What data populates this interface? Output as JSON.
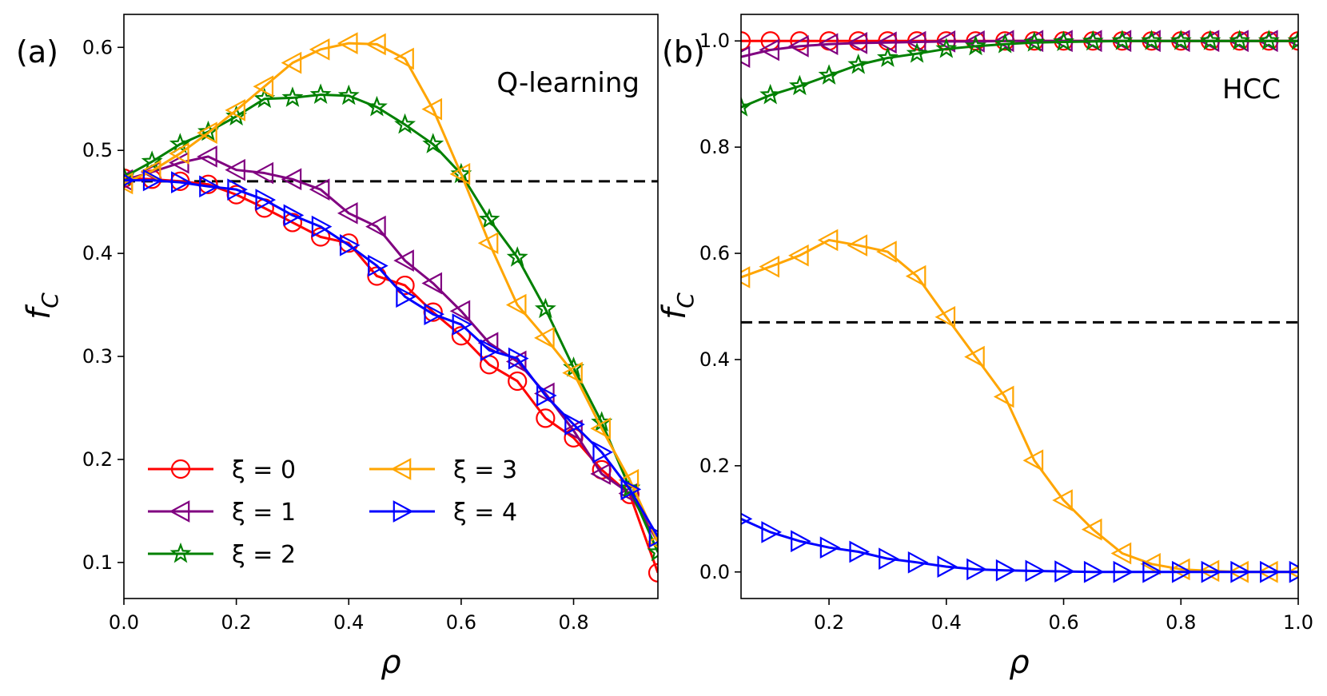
{
  "colors": {
    "xi0": "#ff0000",
    "xi1": "#800080",
    "xi2": "#008000",
    "xi3": "#ffa500",
    "xi4": "#0000ff",
    "reference": "#000000"
  },
  "chart_data": [
    {
      "type": "line",
      "panel_tag": "(a)",
      "title": "Q-learning",
      "xlabel": "ρ",
      "ylabel_base": "f",
      "ylabel_sub": "C",
      "xlim": [
        0.0,
        0.95
      ],
      "ylim": [
        0.065,
        0.632
      ],
      "xticks": [
        "0.0",
        "0.2",
        "0.4",
        "0.6",
        "0.8"
      ],
      "yticks": [
        "0.1",
        "0.2",
        "0.3",
        "0.4",
        "0.5",
        "0.6"
      ],
      "reference_line": 0.47,
      "legend": {
        "position": "lower-left",
        "entries": [
          "ξ = 0",
          "ξ = 1",
          "ξ = 2",
          "ξ = 3",
          "ξ = 4"
        ]
      },
      "series": [
        {
          "name": "ξ = 0",
          "marker": "circle",
          "color_key": "xi0",
          "x": [
            0.0,
            0.05,
            0.1,
            0.15,
            0.2,
            0.25,
            0.3,
            0.35,
            0.4,
            0.45,
            0.5,
            0.55,
            0.6,
            0.65,
            0.7,
            0.75,
            0.8,
            0.85,
            0.9,
            0.95
          ],
          "y": [
            0.473,
            0.472,
            0.47,
            0.467,
            0.457,
            0.444,
            0.43,
            0.416,
            0.41,
            0.378,
            0.369,
            0.343,
            0.32,
            0.292,
            0.276,
            0.24,
            0.221,
            0.19,
            0.166,
            0.09
          ]
        },
        {
          "name": "ξ = 1",
          "marker": "triangle-left",
          "color_key": "xi1",
          "x": [
            0.0,
            0.05,
            0.1,
            0.15,
            0.2,
            0.25,
            0.3,
            0.35,
            0.4,
            0.45,
            0.5,
            0.55,
            0.6,
            0.65,
            0.7,
            0.75,
            0.8,
            0.85,
            0.9,
            0.95
          ],
          "y": [
            0.471,
            0.479,
            0.488,
            0.494,
            0.481,
            0.478,
            0.472,
            0.462,
            0.439,
            0.426,
            0.393,
            0.371,
            0.344,
            0.313,
            0.295,
            0.264,
            0.228,
            0.186,
            0.167,
            0.12
          ]
        },
        {
          "name": "ξ = 2",
          "marker": "star",
          "color_key": "xi2",
          "x": [
            0.0,
            0.05,
            0.1,
            0.15,
            0.2,
            0.25,
            0.3,
            0.35,
            0.4,
            0.45,
            0.5,
            0.55,
            0.6,
            0.65,
            0.7,
            0.75,
            0.8,
            0.85,
            0.9,
            0.95
          ],
          "y": [
            0.474,
            0.489,
            0.506,
            0.518,
            0.533,
            0.55,
            0.551,
            0.554,
            0.553,
            0.542,
            0.525,
            0.506,
            0.477,
            0.433,
            0.396,
            0.346,
            0.289,
            0.236,
            0.172,
            0.11
          ]
        },
        {
          "name": "ξ = 3",
          "marker": "triangle-left",
          "color_key": "xi3",
          "x": [
            0.0,
            0.05,
            0.1,
            0.15,
            0.2,
            0.25,
            0.3,
            0.35,
            0.4,
            0.45,
            0.5,
            0.55,
            0.6,
            0.65,
            0.7,
            0.75,
            0.8,
            0.85,
            0.9,
            0.95
          ],
          "y": [
            0.468,
            0.48,
            0.497,
            0.517,
            0.539,
            0.562,
            0.585,
            0.598,
            0.604,
            0.603,
            0.589,
            0.54,
            0.477,
            0.41,
            0.35,
            0.318,
            0.284,
            0.23,
            0.18,
            0.12
          ]
        },
        {
          "name": "ξ = 4",
          "marker": "triangle-right",
          "color_key": "xi4",
          "x": [
            0.0,
            0.05,
            0.1,
            0.15,
            0.2,
            0.25,
            0.3,
            0.35,
            0.4,
            0.45,
            0.5,
            0.55,
            0.6,
            0.65,
            0.7,
            0.75,
            0.8,
            0.85,
            0.9,
            0.95
          ],
          "y": [
            0.471,
            0.471,
            0.469,
            0.465,
            0.462,
            0.452,
            0.437,
            0.426,
            0.408,
            0.388,
            0.358,
            0.341,
            0.331,
            0.306,
            0.298,
            0.262,
            0.234,
            0.207,
            0.171,
            0.125
          ]
        }
      ]
    },
    {
      "type": "line",
      "panel_tag": "(b)",
      "title": "HCC",
      "xlabel": "ρ",
      "ylabel_base": "f",
      "ylabel_sub": "C",
      "xlim": [
        0.05,
        1.0
      ],
      "ylim": [
        -0.05,
        1.05
      ],
      "xticks": [
        "0.2",
        "0.4",
        "0.6",
        "0.8",
        "1.0"
      ],
      "yticks": [
        "0.0",
        "0.2",
        "0.4",
        "0.6",
        "0.8",
        "1.0"
      ],
      "reference_line": 0.47,
      "series": [
        {
          "name": "ξ = 0",
          "marker": "circle",
          "color_key": "xi0",
          "x": [
            0.05,
            0.1,
            0.15,
            0.2,
            0.25,
            0.3,
            0.35,
            0.4,
            0.45,
            0.5,
            0.55,
            0.6,
            0.65,
            0.7,
            0.75,
            0.8,
            0.85,
            0.9,
            0.95,
            1.0
          ],
          "y": [
            1.0,
            1.0,
            1.0,
            1.0,
            1.0,
            1.0,
            1.0,
            1.0,
            1.0,
            1.0,
            1.0,
            1.0,
            1.0,
            1.0,
            1.0,
            1.0,
            1.0,
            1.0,
            1.0,
            1.0
          ]
        },
        {
          "name": "ξ = 1",
          "marker": "triangle-left",
          "color_key": "xi1",
          "x": [
            0.05,
            0.1,
            0.15,
            0.2,
            0.25,
            0.3,
            0.35,
            0.4,
            0.45,
            0.5,
            0.55,
            0.6,
            0.65,
            0.7,
            0.75,
            0.8,
            0.85,
            0.9,
            0.95,
            1.0
          ],
          "y": [
            0.97,
            0.983,
            0.99,
            0.994,
            0.996,
            0.997,
            0.998,
            0.999,
            0.999,
            1.0,
            1.0,
            1.0,
            1.0,
            1.0,
            1.0,
            1.0,
            1.0,
            1.0,
            1.0,
            1.0
          ]
        },
        {
          "name": "ξ = 2",
          "marker": "star",
          "color_key": "xi2",
          "x": [
            0.05,
            0.1,
            0.15,
            0.2,
            0.25,
            0.3,
            0.35,
            0.4,
            0.45,
            0.5,
            0.55,
            0.6,
            0.65,
            0.7,
            0.75,
            0.8,
            0.85,
            0.9,
            0.95,
            1.0
          ],
          "y": [
            0.875,
            0.898,
            0.915,
            0.935,
            0.955,
            0.968,
            0.976,
            0.985,
            0.99,
            0.994,
            0.997,
            0.998,
            0.999,
            1.0,
            1.0,
            1.0,
            1.0,
            1.0,
            1.0,
            1.0
          ]
        },
        {
          "name": "ξ = 3",
          "marker": "triangle-left",
          "color_key": "xi3",
          "x": [
            0.05,
            0.1,
            0.15,
            0.2,
            0.25,
            0.3,
            0.35,
            0.4,
            0.45,
            0.5,
            0.55,
            0.6,
            0.65,
            0.7,
            0.75,
            0.8,
            0.85,
            0.9,
            0.95,
            1.0
          ],
          "y": [
            0.555,
            0.575,
            0.596,
            0.625,
            0.615,
            0.603,
            0.557,
            0.48,
            0.405,
            0.33,
            0.21,
            0.135,
            0.08,
            0.035,
            0.015,
            0.005,
            0.002,
            0.0,
            0.0,
            0.0
          ]
        },
        {
          "name": "ξ = 4",
          "marker": "triangle-right",
          "color_key": "xi4",
          "x": [
            0.05,
            0.1,
            0.15,
            0.2,
            0.25,
            0.3,
            0.35,
            0.4,
            0.45,
            0.5,
            0.55,
            0.6,
            0.65,
            0.7,
            0.75,
            0.8,
            0.85,
            0.9,
            0.95,
            1.0
          ],
          "y": [
            0.1,
            0.075,
            0.058,
            0.046,
            0.038,
            0.025,
            0.018,
            0.01,
            0.005,
            0.003,
            0.002,
            0.001,
            0.0,
            0.0,
            0.0,
            0.0,
            0.0,
            0.0,
            0.0,
            0.0
          ]
        }
      ]
    }
  ]
}
